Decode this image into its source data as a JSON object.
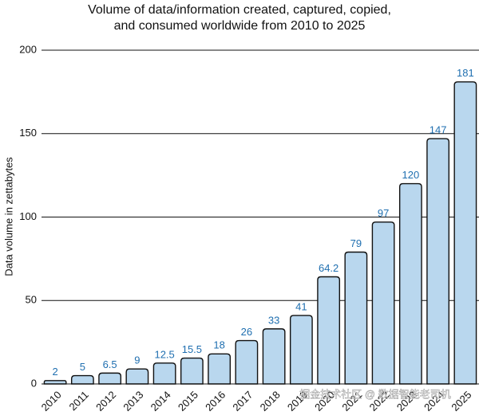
{
  "chart_data": {
    "type": "bar",
    "title": [
      "Volume of data/information created, captured, copied,",
      "and consumed worldwide from 2010 to 2025"
    ],
    "y_label": "Data volume in zettabytes",
    "categories": [
      "2010",
      "2011",
      "2012",
      "2013",
      "2014",
      "2015",
      "2016",
      "2017",
      "2018",
      "2019",
      "2020",
      "2021",
      "2022",
      "2023",
      "2024",
      "2025"
    ],
    "values": [
      2,
      5,
      6.5,
      9,
      12.5,
      15.5,
      18,
      26,
      33,
      41,
      64.2,
      79,
      97,
      120,
      147,
      181
    ],
    "color": "#b9d7ee",
    "ylim": [
      0,
      200
    ],
    "yticks": [
      0,
      50,
      100,
      150,
      200
    ],
    "grid": true,
    "watermark": "掘金技术社区 @ 数据智能老司机"
  }
}
